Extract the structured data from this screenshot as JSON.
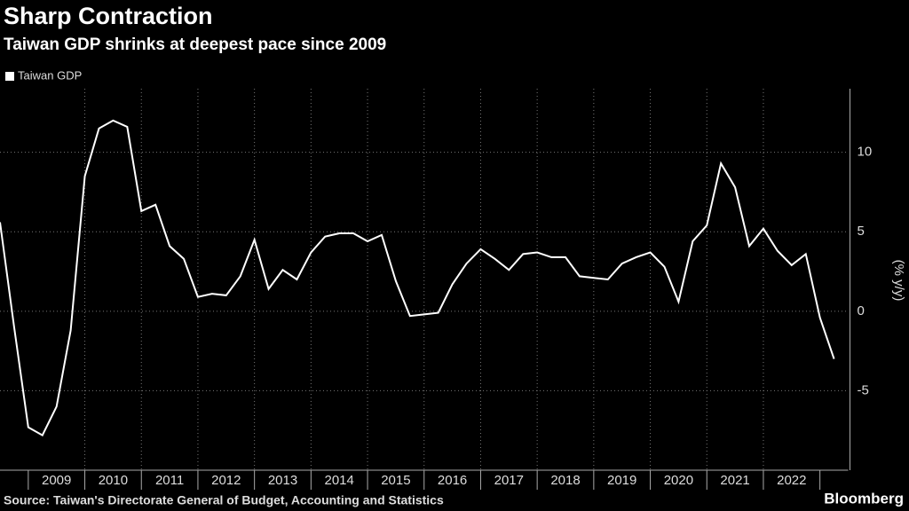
{
  "chart_data": {
    "type": "line",
    "title": "Sharp Contraction",
    "subtitle": "Taiwan GDP shrinks at deepest pace since 2009",
    "y_label": "(% y/y)",
    "source": "Source: Taiwan's Directorate General of Budget, Accounting and Statistics",
    "brand": "Bloomberg",
    "x": [
      2008.5,
      2008.75,
      2009,
      2009.25,
      2009.5,
      2009.75,
      2010,
      2010.25,
      2010.5,
      2010.75,
      2011,
      2011.25,
      2011.5,
      2011.75,
      2012,
      2012.25,
      2012.5,
      2012.75,
      2013,
      2013.25,
      2013.5,
      2013.75,
      2014,
      2014.25,
      2014.5,
      2014.75,
      2015,
      2015.25,
      2015.5,
      2015.75,
      2016,
      2016.25,
      2016.5,
      2016.75,
      2017,
      2017.25,
      2017.5,
      2017.75,
      2018,
      2018.25,
      2018.5,
      2018.75,
      2019,
      2019.25,
      2019.5,
      2019.75,
      2020,
      2020.25,
      2020.5,
      2020.75,
      2021,
      2021.25,
      2021.5,
      2021.75,
      2022,
      2022.25,
      2022.5,
      2022.75,
      2023,
      2023.25
    ],
    "series": [
      {
        "name": "Taiwan GDP",
        "color": "#ffffff",
        "values": [
          5.6,
          -1.0,
          -7.3,
          -7.8,
          -6.0,
          -1.2,
          8.5,
          11.5,
          12.0,
          11.6,
          6.3,
          6.7,
          4.1,
          3.3,
          0.9,
          1.1,
          1.0,
          2.2,
          4.5,
          1.4,
          2.6,
          2.0,
          3.7,
          4.7,
          4.9,
          4.9,
          4.4,
          4.8,
          1.9,
          -0.3,
          -0.2,
          -0.1,
          1.7,
          3.0,
          3.9,
          3.3,
          2.6,
          3.6,
          3.7,
          3.4,
          3.4,
          2.2,
          2.1,
          2.0,
          3.0,
          3.4,
          3.7,
          2.8,
          0.6,
          4.4,
          5.4,
          9.3,
          7.8,
          4.1,
          5.2,
          3.8,
          2.9,
          3.6,
          -0.4,
          -3.0
        ]
      }
    ],
    "xlim": [
      2008.5,
      2023.5
    ],
    "xticks": [
      {
        "value": 2009,
        "label": "2009"
      },
      {
        "value": 2010,
        "label": "2010"
      },
      {
        "value": 2011,
        "label": "2011"
      },
      {
        "value": 2012,
        "label": "2012"
      },
      {
        "value": 2013,
        "label": "2013"
      },
      {
        "value": 2014,
        "label": "2014"
      },
      {
        "value": 2015,
        "label": "2015"
      },
      {
        "value": 2016,
        "label": "2016"
      },
      {
        "value": 2017,
        "label": "2017"
      },
      {
        "value": 2018,
        "label": "2018"
      },
      {
        "value": 2019,
        "label": "2019"
      },
      {
        "value": 2020,
        "label": "2020"
      },
      {
        "value": 2021,
        "label": "2021"
      },
      {
        "value": 2022,
        "label": "2022"
      }
    ],
    "ylim": [
      -10,
      14
    ],
    "yticks": [
      -5,
      0,
      5,
      10
    ],
    "grid": true,
    "legend": "top-left"
  }
}
